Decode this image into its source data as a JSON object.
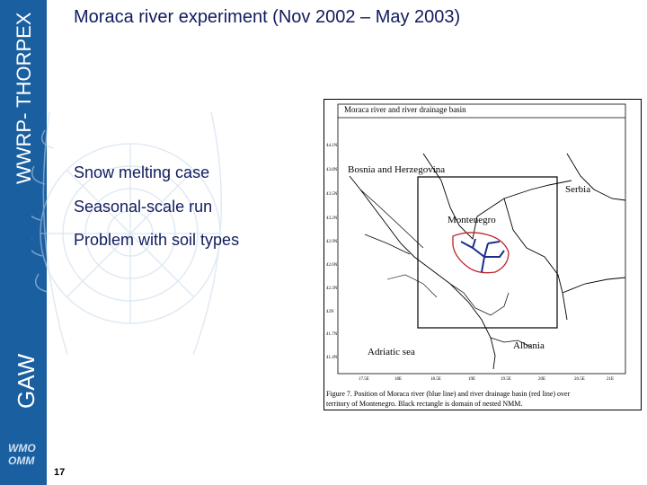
{
  "sidebar": {
    "program_label": "WWRP- THORPEX",
    "gaw_label": "GAW",
    "logo_line1": "WMO",
    "logo_line2": "OMM",
    "color": "#1a5fa0"
  },
  "slide": {
    "title": "Moraca river experiment (Nov 2002 – May 2003)",
    "bullets": [
      "Snow melting case",
      "Seasonal-scale run",
      "Problem with soil types"
    ],
    "number": "17"
  },
  "map": {
    "title": "Moraca river and river drainage basin",
    "regions": {
      "bosnia": "Bosnia and Herzegovina",
      "serbia": "Serbia",
      "montenegro": "Montenegro",
      "albania": "Albania",
      "sea": "Adriatic sea"
    },
    "lat_ticks": [
      "44.1N",
      "43.8N",
      "43.5N",
      "43.2N",
      "42.9N",
      "42.6N",
      "42.3N",
      "42N",
      "41.7N",
      "41.4N"
    ],
    "lon_ticks": [
      "17.5E",
      "18E",
      "18.5E",
      "19E",
      "19.5E",
      "20E",
      "20.5E",
      "21E"
    ],
    "caption_line1": "Figure 7. Position of Moraca river (blue line) and river drainage basin (red line) over",
    "caption_line2": "territory of Montenegro. Black rectangle is domain of nested NMM.",
    "river_color": "#1a2e8c",
    "basin_color": "#c0222a"
  }
}
